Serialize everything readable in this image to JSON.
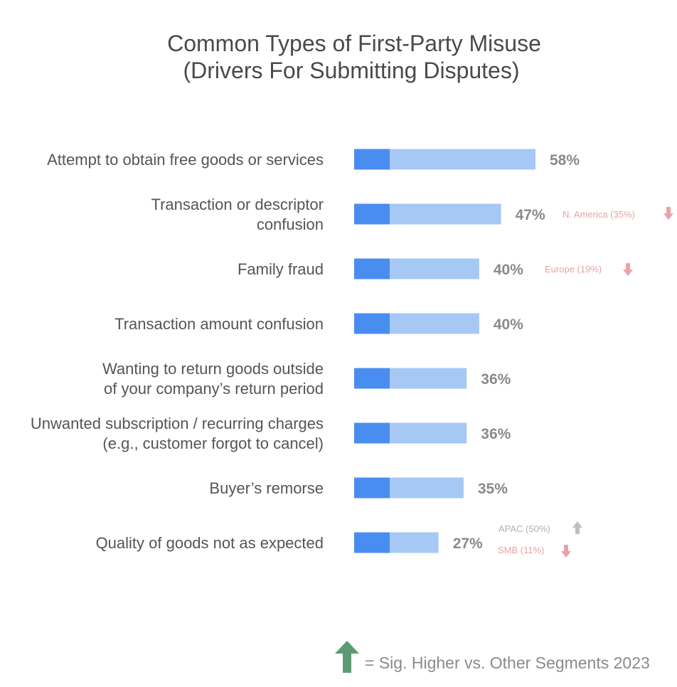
{
  "chart_data": {
    "type": "bar",
    "orientation": "horizontal",
    "title_lines": [
      "Common Types of First-Party Misuse",
      "(Drivers For Submitting Disputes)"
    ],
    "categories": [
      [
        "Attempt to obtain free goods or services"
      ],
      [
        "Transaction or descriptor",
        "confusion"
      ],
      [
        "Family fraud"
      ],
      [
        "Transaction amount confusion"
      ],
      [
        "Wanting to return goods outside",
        "of your company’s return period"
      ],
      [
        "Unwanted subscription / recurring charges",
        "(e.g., customer forgot to cancel)"
      ],
      [
        "Buyer’s remorse"
      ],
      [
        "Quality of goods not as expected"
      ]
    ],
    "values": [
      58,
      47,
      40,
      40,
      36,
      36,
      35,
      27
    ],
    "value_labels": [
      "58%",
      "47%",
      "40%",
      "40%",
      "36%",
      "36%",
      "35%",
      "27%"
    ],
    "xlim": [
      0,
      60
    ],
    "grid": false,
    "legend": "none",
    "annotations": [
      {
        "category_index": 1,
        "items": [
          {
            "text": "N. America (35%)",
            "direction": "down"
          }
        ]
      },
      {
        "category_index": 2,
        "items": [
          {
            "text": "Europe (19%)",
            "direction": "down"
          }
        ]
      },
      {
        "category_index": 7,
        "items": [
          {
            "text": "APAC (50%)",
            "direction": "up"
          },
          {
            "text": "SMB (11%)",
            "direction": "down"
          }
        ]
      }
    ],
    "footnote": "= Sig. Higher vs. Other Segments 2023",
    "footnote_icon": "green-up-arrow-icon",
    "colors": {
      "bar_light": "#a6c8f5",
      "bar_dark": "#4a8df0",
      "down_arrow": "#e8a3a8",
      "up_arrow": "#b9c0c9",
      "legend_arrow": "#5c9b72",
      "down_note_text": "#e6a2a7",
      "up_note_text": "#aab3bf"
    }
  }
}
